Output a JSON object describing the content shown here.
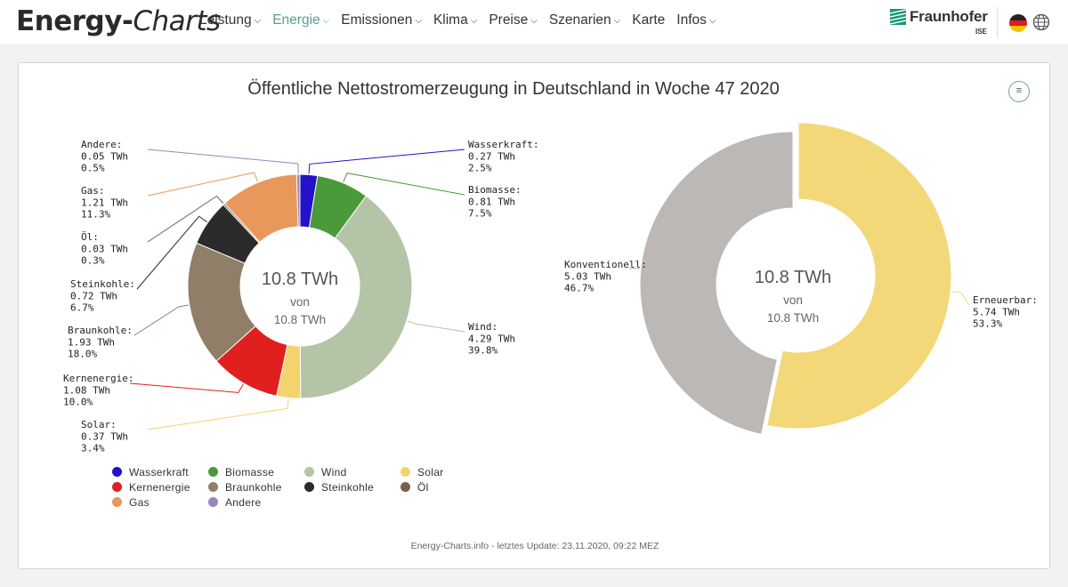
{
  "header": {
    "logo_part1": "Energy-",
    "logo_part2": "Charts",
    "nav": [
      {
        "label": "Leistung",
        "chevron": true,
        "active": false
      },
      {
        "label": "Energie",
        "chevron": true,
        "active": true
      },
      {
        "label": "Emissionen",
        "chevron": true,
        "active": false
      },
      {
        "label": "Klima",
        "chevron": true,
        "active": false
      },
      {
        "label": "Preise",
        "chevron": true,
        "active": false
      },
      {
        "label": "Szenarien",
        "chevron": true,
        "active": false
      },
      {
        "label": "Karte",
        "chevron": false,
        "active": false
      },
      {
        "label": "Infos",
        "chevron": true,
        "active": false
      }
    ],
    "brand_name": "Fraunhofer",
    "brand_sub": "ISE",
    "flag_icon": "germany-flag-icon",
    "globe_icon": "globe-icon",
    "accent_color": "#5d9c8f"
  },
  "chart_menu_icon": "hamburger-menu-icon",
  "chart_menu_symbol": "≡",
  "footer": "Energy-Charts.info - letztes Update: 23.11.2020, 09:22 MEZ",
  "chart_data": [
    {
      "type": "pie",
      "title": "Öffentliche Nettostromerzeugung in Deutschland in Woche 47 2020",
      "center_value": "10.8 TWh",
      "center_of": "von",
      "center_total": "10.8 TWh",
      "slices": [
        {
          "name": "Wasserkraft",
          "value": 0.27,
          "value_label": "0.27 TWh",
          "percent_label": "2.5%",
          "color": "#2412c8"
        },
        {
          "name": "Biomasse",
          "value": 0.81,
          "value_label": "0.81 TWh",
          "percent_label": "7.5%",
          "color": "#4a9a3a"
        },
        {
          "name": "Wind",
          "value": 4.29,
          "value_label": "4.29 TWh",
          "percent_label": "39.8%",
          "color": "#b4c4a6"
        },
        {
          "name": "Solar",
          "value": 0.37,
          "value_label": "0.37 TWh",
          "percent_label": "3.4%",
          "color": "#f3d36d"
        },
        {
          "name": "Kernenergie",
          "value": 1.08,
          "value_label": "1.08 TWh",
          "percent_label": "10.0%",
          "color": "#e01f1f"
        },
        {
          "name": "Braunkohle",
          "value": 1.93,
          "value_label": "1.93 TWh",
          "percent_label": "18.0%",
          "color": "#907e68"
        },
        {
          "name": "Steinkohle",
          "value": 0.72,
          "value_label": "0.72 TWh",
          "percent_label": "6.7%",
          "color": "#2b2b2b"
        },
        {
          "name": "Öl",
          "value": 0.03,
          "value_label": "0.03 TWh",
          "percent_label": "0.3%",
          "color": "#76624d"
        },
        {
          "name": "Gas",
          "value": 1.21,
          "value_label": "1.21 TWh",
          "percent_label": "11.3%",
          "color": "#e8985b"
        },
        {
          "name": "Andere",
          "value": 0.05,
          "value_label": "0.05 TWh",
          "percent_label": "0.5%",
          "color": "#9a86bb"
        }
      ],
      "legend_order": [
        "Wasserkraft",
        "Biomasse",
        "Wind",
        "Solar",
        "Kernenergie",
        "Braunkohle",
        "Steinkohle",
        "Öl",
        "Gas",
        "Andere"
      ]
    },
    {
      "type": "pie",
      "center_value": "10.8 TWh",
      "center_of": "von",
      "center_total": "10.8 TWh",
      "slices": [
        {
          "name": "Erneuerbar",
          "value": 5.74,
          "value_label": "5.74 TWh",
          "percent_label": "53.3%",
          "color": "#f3d87a"
        },
        {
          "name": "Konventionell",
          "value": 5.03,
          "value_label": "5.03 TWh",
          "percent_label": "46.7%",
          "color": "#bbb8b5"
        }
      ]
    }
  ]
}
